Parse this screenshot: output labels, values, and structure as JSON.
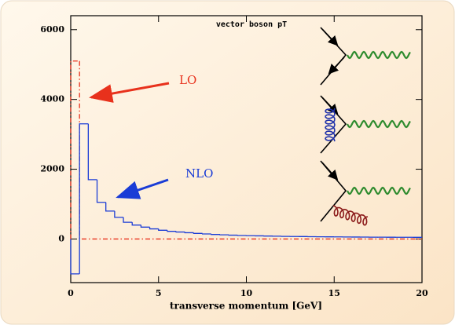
{
  "chart_data": {
    "type": "histogram",
    "title": "vector boson pT",
    "xlabel": "transverse momentum [GeV]",
    "xlim": [
      0,
      20
    ],
    "ylim": [
      -1250,
      6400
    ],
    "xticks": [
      0,
      5,
      10,
      15,
      20
    ],
    "yticks": [
      0,
      2000,
      4000,
      6000
    ],
    "series": [
      {
        "name": "LO",
        "color": "#e8311c",
        "style": "dash-dot",
        "bins": [
          0,
          0.5,
          20
        ],
        "values": [
          5100,
          0
        ]
      },
      {
        "name": "NLO",
        "color": "#1a3cd6",
        "style": "solid",
        "bins": [
          0,
          0.5,
          1,
          1.5,
          2,
          2.5,
          3,
          3.5,
          4,
          4.5,
          5,
          5.5,
          6,
          6.5,
          7,
          7.5,
          8,
          8.5,
          9,
          9.5,
          10,
          10.5,
          11,
          11.5,
          12,
          12.5,
          13,
          13.5,
          14,
          14.5,
          15,
          15.5,
          16,
          16.5,
          17,
          17.5,
          18,
          18.5,
          19,
          19.5,
          20
        ],
        "values": [
          -1000,
          3300,
          1700,
          1050,
          800,
          620,
          480,
          400,
          340,
          290,
          250,
          220,
          200,
          180,
          160,
          145,
          130,
          120,
          110,
          100,
          95,
          90,
          85,
          80,
          75,
          72,
          70,
          67,
          64,
          62,
          60,
          58,
          56,
          55,
          53,
          52,
          51,
          50,
          49,
          48
        ]
      }
    ]
  }
}
